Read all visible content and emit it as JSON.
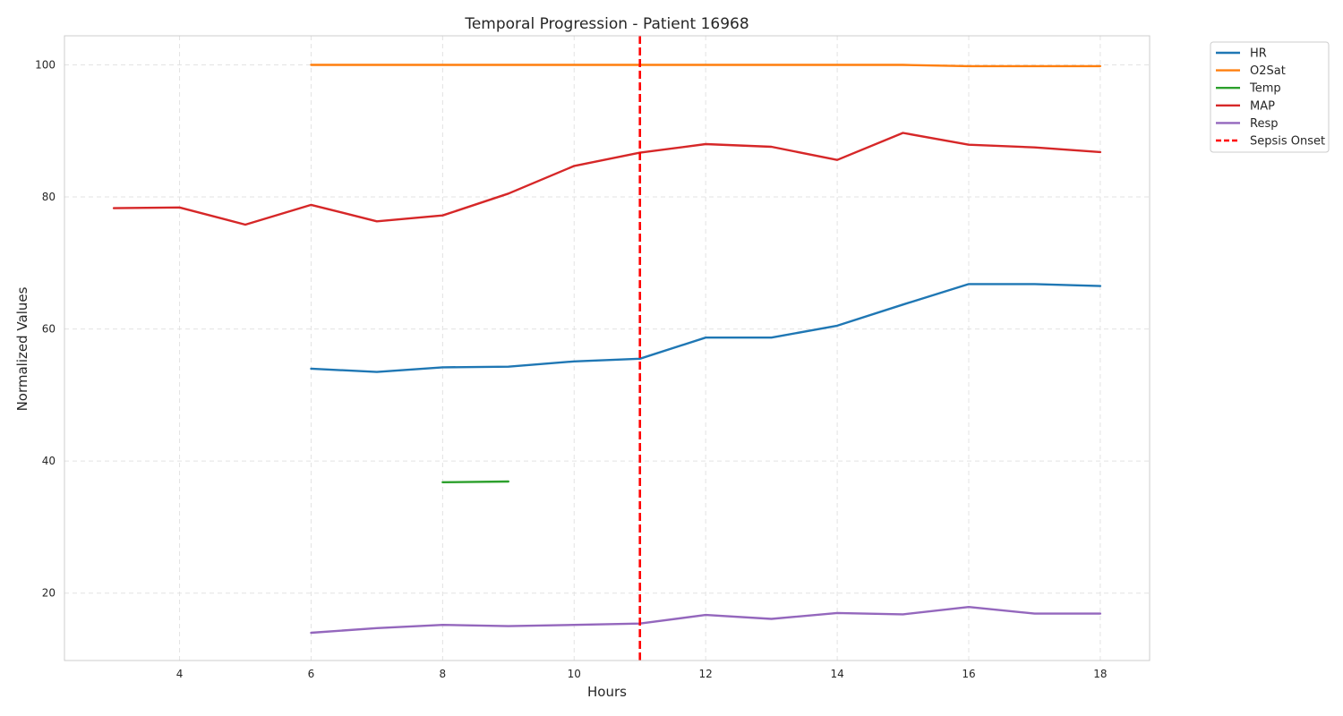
{
  "chart_data": {
    "type": "line",
    "title": "Temporal Progression - Patient 16968",
    "xlabel": "Hours",
    "ylabel": "Normalized Values",
    "xlim": [
      2.25,
      18.75
    ],
    "ylim": [
      9.8,
      104.4
    ],
    "xticks": [
      4,
      6,
      8,
      10,
      12,
      14,
      16,
      18
    ],
    "yticks": [
      20,
      40,
      60,
      80,
      100
    ],
    "grid": true,
    "legend_position": "outside top-right",
    "series": [
      {
        "name": "HR",
        "color": "#1f77b4",
        "x": [
          6,
          7,
          8,
          9,
          10,
          11,
          12,
          13,
          14,
          15,
          16,
          17,
          18
        ],
        "y": [
          54,
          53.5,
          54.2,
          54.3,
          55.1,
          55.5,
          58.7,
          58.7,
          60.5,
          63.7,
          66.8,
          66.8,
          66.5
        ]
      },
      {
        "name": "O2Sat",
        "color": "#ff7f0e",
        "x": [
          6,
          7,
          8,
          9,
          10,
          11,
          12,
          13,
          14,
          15,
          16,
          17,
          18
        ],
        "y": [
          100,
          100,
          100,
          100,
          100,
          100,
          100,
          100,
          100,
          100,
          99.8,
          99.8,
          99.8
        ]
      },
      {
        "name": "Temp",
        "color": "#2ca02c",
        "x": [
          8,
          9
        ],
        "y": [
          36.8,
          36.9
        ]
      },
      {
        "name": "MAP",
        "color": "#d62728",
        "x": [
          3,
          4,
          5,
          6,
          7,
          8,
          9,
          10,
          11,
          12,
          13,
          14,
          15,
          16,
          17,
          18
        ],
        "y": [
          78.3,
          78.4,
          75.8,
          78.8,
          76.3,
          77.2,
          80.5,
          84.7,
          86.7,
          88,
          87.6,
          85.6,
          89.7,
          87.9,
          87.5,
          86.8
        ]
      },
      {
        "name": "Resp",
        "color": "#9467bd",
        "x": [
          6,
          7,
          8,
          9,
          10,
          11,
          12,
          13,
          14,
          15,
          16,
          17,
          18
        ],
        "y": [
          14,
          14.7,
          15.2,
          15,
          15.2,
          15.4,
          16.7,
          16.1,
          17,
          16.8,
          17.9,
          16.9,
          16.9
        ]
      }
    ],
    "vlines": [
      {
        "name": "Sepsis Onset",
        "x": 11,
        "color": "#ff0000",
        "style": "dashed"
      }
    ]
  }
}
